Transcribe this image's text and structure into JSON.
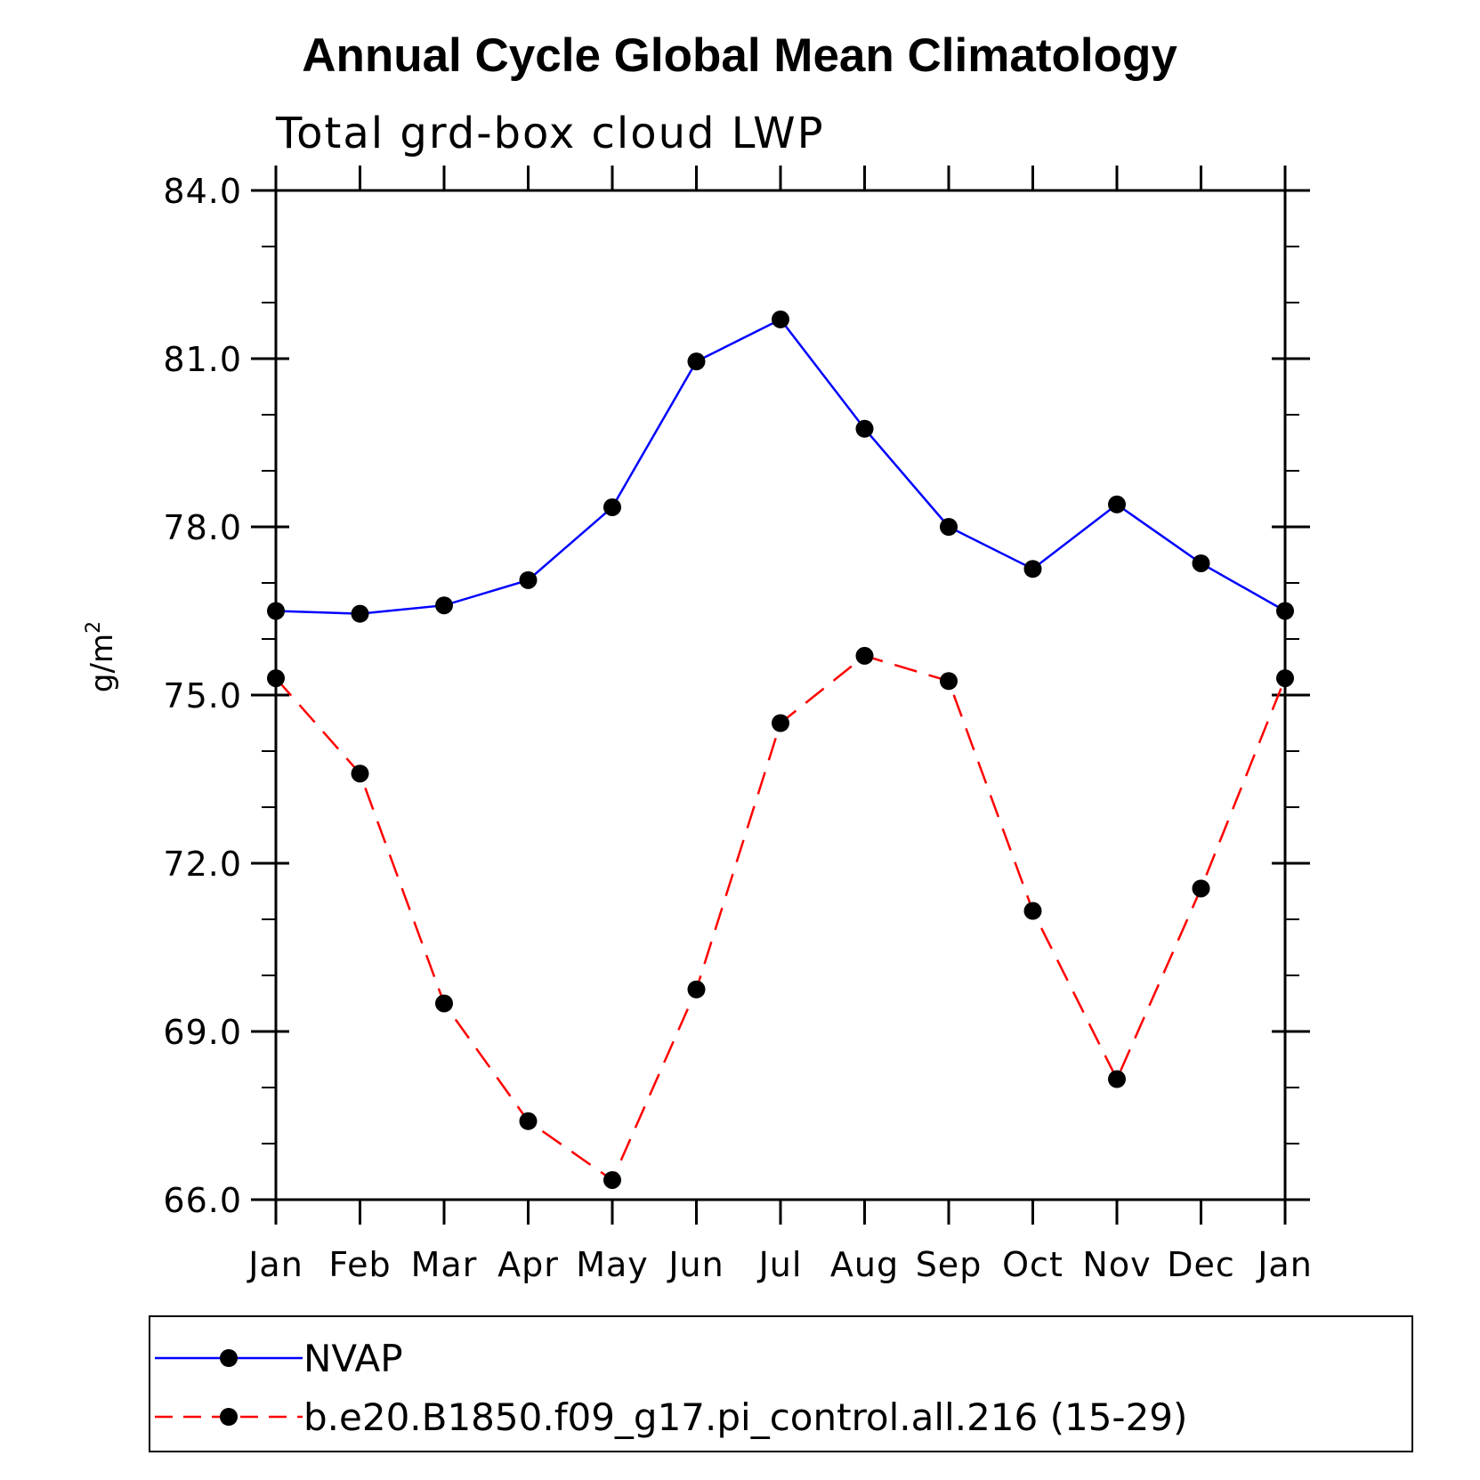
{
  "chart_data": {
    "type": "line",
    "title": "Annual Cycle Global Mean Climatology",
    "subtitle": "Total grd-box cloud LWP",
    "xlabel": "",
    "ylabel": "g/m",
    "ylabel_superscript": "2",
    "categories": [
      "Jan",
      "Feb",
      "Mar",
      "Apr",
      "May",
      "Jun",
      "Jul",
      "Aug",
      "Sep",
      "Oct",
      "Nov",
      "Dec",
      "Jan"
    ],
    "ylim": [
      66.0,
      84.0
    ],
    "yticks": [
      66.0,
      69.0,
      72.0,
      75.0,
      78.0,
      81.0,
      84.0
    ],
    "ytick_labels": [
      "66.0",
      "69.0",
      "72.0",
      "75.0",
      "78.0",
      "81.0",
      "84.0"
    ],
    "y_minor_step": 1.0,
    "grid": false,
    "legend_position": "bottom",
    "series": [
      {
        "name": "NVAP",
        "color": "#0000ff",
        "style": "solid",
        "marker": "circle",
        "values": [
          76.5,
          76.45,
          76.6,
          77.05,
          78.35,
          80.95,
          81.7,
          79.75,
          78.0,
          77.25,
          78.4,
          77.35,
          76.5
        ]
      },
      {
        "name": "b.e20.B1850.f09_g17.pi_control.all.216 (15-29)",
        "color": "#ff0000",
        "style": "dashed",
        "marker": "circle",
        "values": [
          75.3,
          73.6,
          69.5,
          67.4,
          66.35,
          69.75,
          74.5,
          75.7,
          75.25,
          71.15,
          68.15,
          71.55,
          75.3
        ]
      }
    ]
  }
}
